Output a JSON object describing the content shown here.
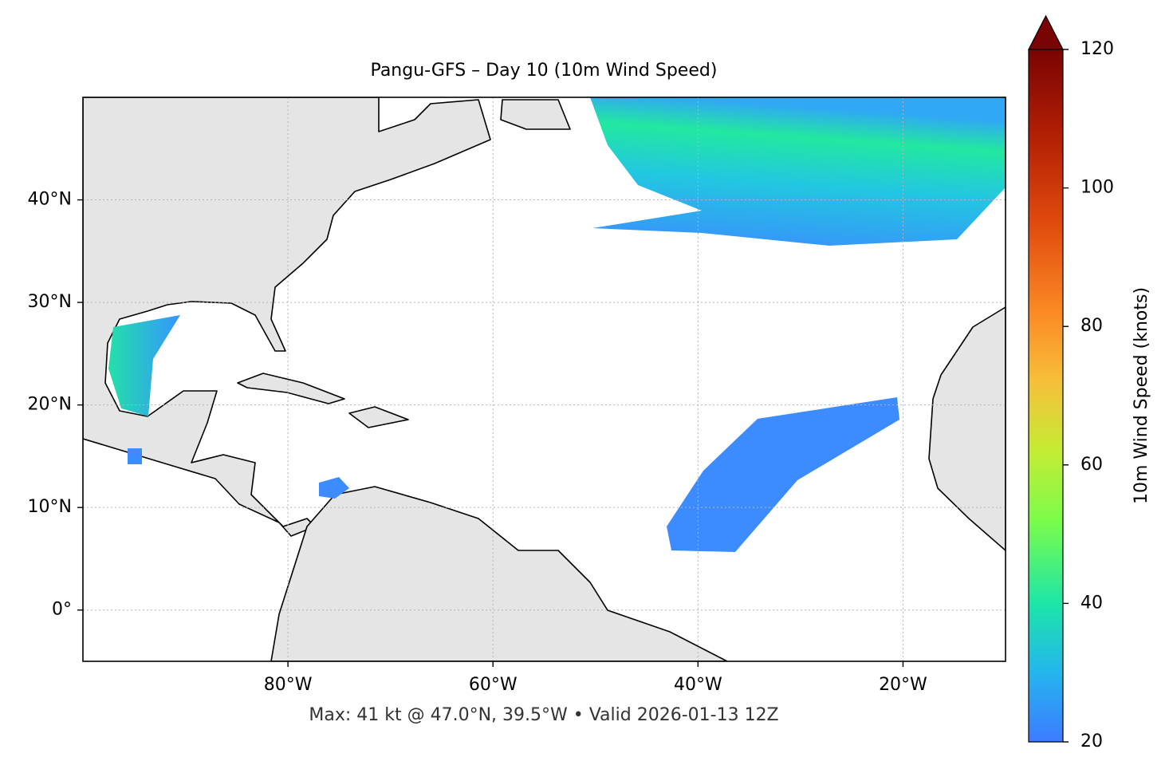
{
  "map": {
    "title": "Pangu-GFS – Day 10 (10m Wind Speed)",
    "note": "Max: 41 kt @ 47.0°N, 39.5°W • Valid 2026-01-13 12Z",
    "lonlim": [
      -100,
      -10
    ],
    "latlim": [
      -5,
      50
    ],
    "lonticks": [
      {
        "value": -80,
        "label": "80°W"
      },
      {
        "value": -60,
        "label": "60°W"
      },
      {
        "value": -40,
        "label": "40°W"
      },
      {
        "value": -20,
        "label": "20°W"
      }
    ],
    "latticks": [
      {
        "value": 0,
        "label": "0°"
      },
      {
        "value": 10,
        "label": "10°N"
      },
      {
        "value": 20,
        "label": "20°N"
      },
      {
        "value": 30,
        "label": "30°N"
      },
      {
        "value": 40,
        "label": "40°N"
      }
    ],
    "grid": true,
    "colorbar": {
      "label": "10m Wind Speed (knots)",
      "lim": [
        20,
        120
      ],
      "ticks": [
        20,
        40,
        60,
        80,
        100,
        120
      ]
    }
  }
}
